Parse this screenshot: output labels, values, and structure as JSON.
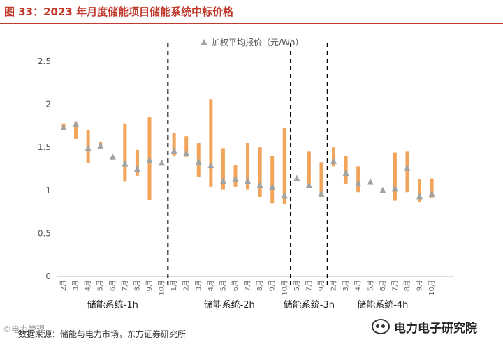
{
  "header": {
    "title": "图 33：2023 年月度储能项目储能系统中标价格"
  },
  "colors": {
    "title_red": "#c0392b",
    "bar_orange": "#f2a45a",
    "marker_grey": "#9ea3a6"
  },
  "footer": {
    "source": "数据来源：储能与电力市场，东方证券研究所",
    "watermark": "©电力管理",
    "brand": "电力电子研究院",
    "brand_icon": "wechat-icon"
  },
  "chart_data": {
    "type": "range_bar_with_markers",
    "ylim": [
      0,
      2.5
    ],
    "yticks": [
      "0",
      "0.5",
      "1",
      "1.5",
      "2",
      "2.5"
    ],
    "legend": {
      "marker": "triangle",
      "label": "加权平均报价（元/Wh）",
      "position": "top-center"
    },
    "grid": false,
    "groups": [
      {
        "name": "储能系统-1h",
        "categories": [
          "2月",
          "3月",
          "4月",
          "5月",
          "6月",
          "7月",
          "8月",
          "9月",
          "10月"
        ],
        "avg": [
          1.73,
          1.77,
          1.49,
          1.52,
          1.39,
          1.31,
          1.25,
          1.35,
          1.32
        ],
        "low": [
          1.71,
          1.6,
          1.32,
          1.48,
          null,
          1.1,
          1.17,
          0.89,
          null
        ],
        "high": [
          1.78,
          1.79,
          1.7,
          1.56,
          null,
          1.78,
          1.47,
          1.85,
          null
        ]
      },
      {
        "name": "储能系统-2h",
        "categories": [
          "1月",
          "2月",
          "3月",
          "4月",
          "5月",
          "6月",
          "7月",
          "8月",
          "9月",
          "10月"
        ],
        "avg": [
          1.46,
          1.43,
          1.33,
          1.29,
          1.11,
          1.13,
          1.11,
          1.06,
          1.04,
          0.94
        ],
        "low": [
          1.4,
          1.39,
          1.16,
          1.04,
          1.01,
          1.04,
          1.01,
          0.92,
          0.85,
          0.84
        ],
        "high": [
          1.67,
          1.63,
          1.55,
          2.06,
          1.49,
          1.29,
          1.55,
          1.5,
          1.4,
          1.72
        ]
      },
      {
        "name": "储能系统-3h",
        "categories": [
          "5月",
          "7月",
          "9月"
        ],
        "avg": [
          1.14,
          1.06,
          0.96
        ],
        "low": [
          null,
          1.07,
          0.92
        ],
        "high": [
          null,
          1.45,
          1.33
        ]
      },
      {
        "name": "储能系统-4h",
        "categories": [
          "2月",
          "3月",
          "4月",
          "5月",
          "6月",
          "7月",
          "8月",
          "9月",
          "10月"
        ],
        "avg": [
          1.34,
          1.2,
          1.08,
          1.1,
          1.0,
          1.02,
          1.26,
          0.93,
          0.96
        ],
        "low": [
          1.28,
          1.08,
          0.98,
          null,
          null,
          0.88,
          0.98,
          0.86,
          0.91
        ],
        "high": [
          1.5,
          1.4,
          1.28,
          null,
          null,
          1.44,
          1.45,
          1.13,
          1.14
        ]
      }
    ]
  }
}
